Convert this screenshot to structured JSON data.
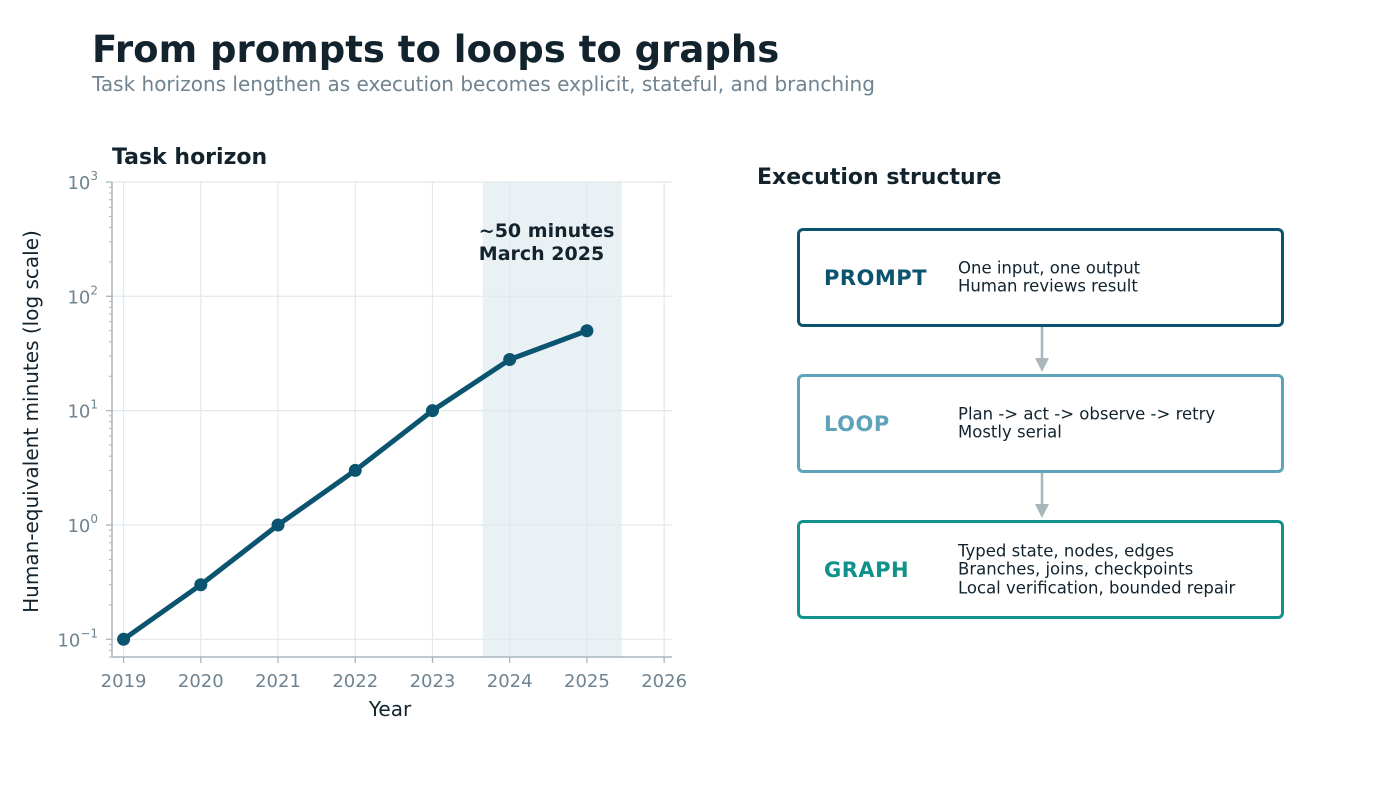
{
  "header": {
    "title": "From prompts to loops to graphs",
    "subtitle": "Task horizons lengthen as execution becomes explicit, stateful, and branching"
  },
  "chart_data": {
    "type": "line",
    "title": "Task horizon",
    "xlabel": "Year",
    "ylabel": "Human-equivalent minutes (log scale)",
    "y_scale": "log",
    "xlim": [
      2018.85,
      2026.05
    ],
    "ylim": [
      0.07,
      1000
    ],
    "x_ticks": [
      2019,
      2020,
      2021,
      2022,
      2023,
      2024,
      2025,
      2026
    ],
    "x_tick_labels": [
      "2019",
      "2020",
      "2021",
      "2022",
      "2023",
      "2024",
      "2025",
      "2026"
    ],
    "y_ticks": [
      {
        "value": 0.1,
        "base": "10",
        "exp": "−1"
      },
      {
        "value": 1,
        "base": "10",
        "exp": "0"
      },
      {
        "value": 10,
        "base": "10",
        "exp": "1"
      },
      {
        "value": 100,
        "base": "10",
        "exp": "2"
      },
      {
        "value": 1000,
        "base": "10",
        "exp": "3"
      }
    ],
    "grid": true,
    "series": [
      {
        "x": [
          2019,
          2020,
          2021,
          2022,
          2023,
          2024,
          2025
        ],
        "y": [
          0.1,
          0.3,
          1,
          3,
          10,
          28,
          50
        ],
        "color": "#0b5470"
      }
    ],
    "shaded_region": {
      "x_start": 2023.65,
      "x_end": 2025.45,
      "color": "#e9f1f5"
    },
    "annotation": {
      "lines": [
        "~50 minutes",
        "March 2025"
      ],
      "x": 2023.6,
      "y": 330
    }
  },
  "structure": {
    "title": "Execution structure",
    "stages": [
      {
        "name": "PROMPT",
        "color": "#0b5470",
        "lines": [
          "One input, one output",
          "Human reviews result"
        ]
      },
      {
        "name": "LOOP",
        "color": "#5fa3ba",
        "lines": [
          "Plan -> act -> observe -> retry",
          "Mostly serial"
        ]
      },
      {
        "name": "GRAPH",
        "color": "#10928a",
        "lines": [
          "Typed state, nodes, edges",
          "Branches, joins, checkpoints",
          "Local verification, bounded repair"
        ]
      }
    ],
    "connector_color": "#a9b6bd"
  }
}
